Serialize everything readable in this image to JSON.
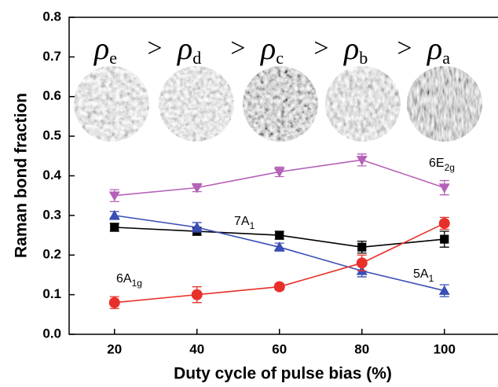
{
  "chart_data": {
    "type": "line",
    "xlabel": "Duty cycle of pulse bias (%)",
    "ylabel": "Raman bond fraction",
    "x": [
      20,
      40,
      60,
      80,
      100
    ],
    "xlim": [
      9,
      113
    ],
    "xticks": [
      20,
      40,
      60,
      80,
      100
    ],
    "ylim": [
      0,
      0.8
    ],
    "yticks": [
      {
        "value": 0,
        "label": "0.0"
      },
      0.1,
      0.2,
      0.3,
      0.4,
      0.5,
      0.6,
      0.7,
      0.8
    ],
    "series": [
      {
        "label": {
          "main": "6E",
          "sub": "2g"
        },
        "color": "#b562b8",
        "marker": "triangle-down",
        "values": [
          0.35,
          0.37,
          0.41,
          0.44,
          0.37
        ],
        "errors": [
          0.015,
          0.01,
          0.012,
          0.015,
          0.018
        ]
      },
      {
        "label": {
          "main": "7A",
          "sub": "1"
        },
        "color": "#000000",
        "marker": "square",
        "values": [
          0.27,
          0.26,
          0.25,
          0.22,
          0.24
        ],
        "errors": [
          0.01,
          0.01,
          0.01,
          0.015,
          0.02
        ]
      },
      {
        "label": {
          "main": "5A",
          "sub": "1"
        },
        "color": "#3a4fb5",
        "marker": "triangle-up",
        "values": [
          0.3,
          0.27,
          0.22,
          0.16,
          0.11
        ],
        "errors": [
          0.01,
          0.012,
          0.01,
          0.015,
          0.015
        ]
      },
      {
        "label": {
          "main": "6A",
          "sub": "1g"
        },
        "color": "#e8302a",
        "marker": "circle",
        "values": [
          0.08,
          0.1,
          0.12,
          0.18,
          0.28
        ],
        "errors": [
          0.015,
          0.02,
          0.008,
          0.02,
          0.015
        ]
      }
    ],
    "density_order": [
      {
        "symbol": "ρ",
        "sub": "e"
      },
      {
        "symbol": "ρ",
        "sub": "d"
      },
      {
        "symbol": "ρ",
        "sub": "c"
      },
      {
        "symbol": "ρ",
        "sub": "b"
      },
      {
        "symbol": "ρ",
        "sub": "a"
      }
    ],
    "separators": [
      ">",
      ">",
      ">",
      ">"
    ]
  }
}
